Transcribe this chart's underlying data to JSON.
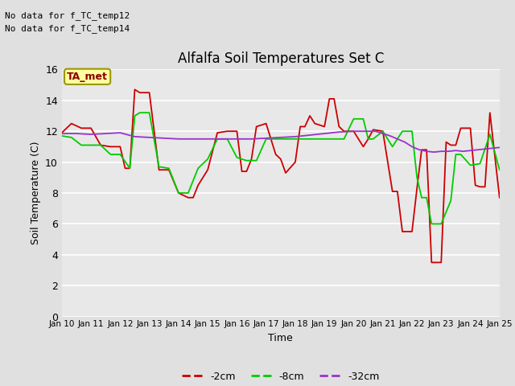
{
  "title": "Alfalfa Soil Temperatures Set C",
  "xlabel": "Time",
  "ylabel": "Soil Temperature (C)",
  "ylim": [
    0,
    16
  ],
  "yticks": [
    0,
    2,
    4,
    6,
    8,
    10,
    12,
    14,
    16
  ],
  "x_labels": [
    "Jan 10",
    "Jan 11",
    "Jan 12",
    "Jan 13",
    "Jan 14",
    "Jan 15",
    "Jan 16",
    "Jan 17",
    "Jan 18",
    "Jan 19",
    "Jan 20",
    "Jan 21",
    "Jan 22",
    "Jan 23",
    "Jan 24",
    "Jan 25"
  ],
  "no_data_text": [
    "No data for f_TC_temp12",
    "No data for f_TC_temp14"
  ],
  "legend_label": "TA_met",
  "legend_box_color": "#FFFFA0",
  "legend_box_edge": "#999900",
  "bg_color": "#E8E8E8",
  "fig_bg_color": "#E0E0E0",
  "series": {
    "2cm": {
      "label": "-2cm",
      "color": "#CC0000",
      "x": [
        0,
        0.33,
        0.67,
        1.0,
        1.33,
        1.67,
        2.0,
        2.17,
        2.33,
        2.5,
        2.67,
        3.0,
        3.33,
        3.67,
        4.0,
        4.33,
        4.5,
        4.67,
        5.0,
        5.33,
        5.67,
        6.0,
        6.17,
        6.33,
        6.5,
        6.67,
        7.0,
        7.33,
        7.5,
        7.67,
        8.0,
        8.17,
        8.33,
        8.5,
        8.67,
        9.0,
        9.17,
        9.33,
        9.5,
        9.67,
        10.0,
        10.33,
        10.5,
        10.67,
        11.0,
        11.33,
        11.5,
        11.67,
        12.0,
        12.17,
        12.33,
        12.5,
        12.67,
        13.0,
        13.17,
        13.33,
        13.5,
        13.67,
        14.0,
        14.17,
        14.33,
        14.5,
        14.67,
        15.0
      ],
      "y": [
        11.9,
        12.5,
        12.2,
        12.2,
        11.1,
        11.0,
        11.0,
        9.6,
        9.6,
        14.7,
        14.5,
        14.5,
        9.5,
        9.5,
        8.0,
        7.7,
        7.7,
        8.5,
        9.5,
        11.9,
        12.0,
        12.0,
        9.4,
        9.4,
        10.2,
        12.3,
        12.5,
        10.5,
        10.2,
        9.3,
        10.0,
        12.3,
        12.3,
        13.0,
        12.5,
        12.3,
        14.1,
        14.1,
        12.3,
        12.0,
        12.0,
        11.0,
        11.5,
        12.1,
        12.0,
        8.1,
        8.1,
        5.5,
        5.5,
        8.3,
        10.8,
        10.8,
        3.5,
        3.5,
        11.3,
        11.1,
        11.1,
        12.2,
        12.2,
        8.5,
        8.4,
        8.4,
        13.2,
        7.7
      ]
    },
    "8cm": {
      "label": "-8cm",
      "color": "#00CC00",
      "x": [
        0,
        0.33,
        0.67,
        1.0,
        1.33,
        1.67,
        2.0,
        2.33,
        2.5,
        2.67,
        3.0,
        3.33,
        3.67,
        4.0,
        4.33,
        4.67,
        5.0,
        5.33,
        5.67,
        6.0,
        6.33,
        6.67,
        7.0,
        7.33,
        7.67,
        8.0,
        8.33,
        8.67,
        9.0,
        9.33,
        9.67,
        10.0,
        10.33,
        10.5,
        10.67,
        11.0,
        11.33,
        11.5,
        11.67,
        12.0,
        12.17,
        12.33,
        12.5,
        12.67,
        13.0,
        13.33,
        13.5,
        13.67,
        14.0,
        14.33,
        14.67,
        15.0
      ],
      "y": [
        11.7,
        11.6,
        11.1,
        11.1,
        11.1,
        10.5,
        10.5,
        9.6,
        13.0,
        13.2,
        13.2,
        9.7,
        9.6,
        8.0,
        8.0,
        9.6,
        10.2,
        11.5,
        11.5,
        10.3,
        10.1,
        10.1,
        11.5,
        11.5,
        11.5,
        11.5,
        11.5,
        11.5,
        11.5,
        11.5,
        11.5,
        12.8,
        12.8,
        11.5,
        11.5,
        12.0,
        11.0,
        11.5,
        12.0,
        12.0,
        9.0,
        7.7,
        7.7,
        6.0,
        6.0,
        7.5,
        10.5,
        10.5,
        9.8,
        9.9,
        11.8,
        9.5
      ]
    },
    "32cm": {
      "label": "-32cm",
      "color": "#9933CC",
      "x": [
        0,
        0.5,
        1.0,
        1.5,
        2.0,
        2.5,
        3.0,
        3.5,
        4.0,
        4.5,
        5.0,
        5.5,
        6.0,
        6.5,
        7.0,
        7.5,
        8.0,
        8.5,
        9.0,
        9.5,
        10.0,
        10.25,
        10.5,
        10.75,
        11.0,
        11.25,
        11.5,
        11.75,
        12.0,
        12.25,
        12.5,
        12.75,
        13.0,
        13.25,
        13.5,
        13.75,
        14.0,
        14.25,
        14.5,
        14.75,
        15.0
      ],
      "y": [
        11.85,
        11.85,
        11.8,
        11.85,
        11.9,
        11.65,
        11.6,
        11.55,
        11.5,
        11.5,
        11.5,
        11.5,
        11.5,
        11.5,
        11.55,
        11.6,
        11.65,
        11.75,
        11.85,
        11.95,
        12.0,
        12.0,
        12.0,
        12.0,
        11.85,
        11.7,
        11.5,
        11.3,
        11.0,
        10.8,
        10.7,
        10.65,
        10.7,
        10.7,
        10.75,
        10.7,
        10.75,
        10.8,
        10.85,
        10.9,
        10.95
      ]
    }
  }
}
